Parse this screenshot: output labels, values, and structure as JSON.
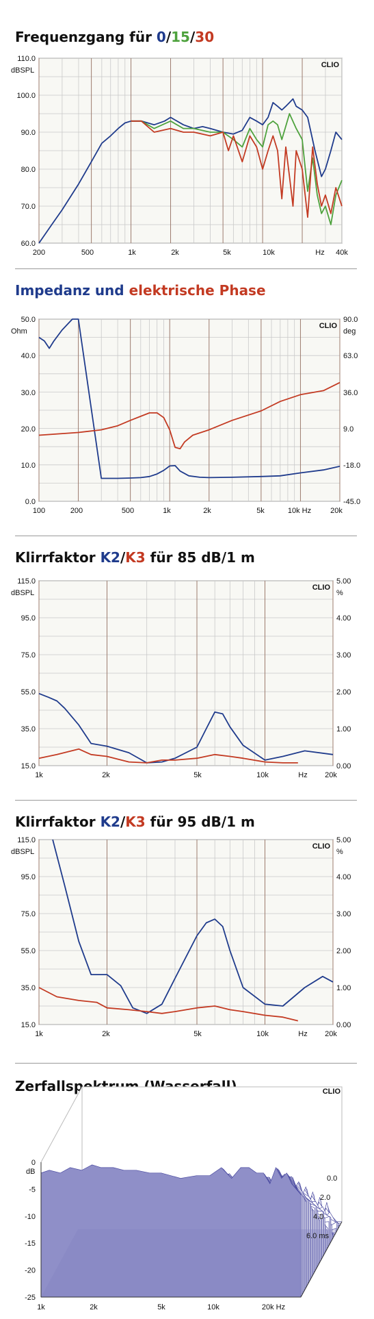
{
  "colors": {
    "blue": "#1f3b8c",
    "green": "#4ea23d",
    "red": "#c33a22",
    "grid": "#c9c9c9",
    "major": "#9c7b6e",
    "plotbg": "#f8f8f4",
    "waterfall": "#4a4aa0"
  },
  "charts": [
    {
      "title_parts": [
        {
          "text": "Frequenzgang für ",
          "color": "default"
        },
        {
          "text": "0",
          "color": "blue"
        },
        {
          "text": "/",
          "color": "default"
        },
        {
          "text": "15",
          "color": "green"
        },
        {
          "text": "/",
          "color": "default"
        },
        {
          "text": "30",
          "color": "red"
        }
      ],
      "brand": "CLIO",
      "left_unit": "dBSPL",
      "y_ticks": [
        "110.0",
        "100.0",
        "90.0",
        "80.0",
        "70.0",
        "60.0"
      ],
      "x_ticks": [
        "200",
        "500",
        "1k",
        "2k",
        "5k",
        "10k",
        "Hz",
        "40k"
      ]
    },
    {
      "title_parts": [
        {
          "text": "Impedanz und ",
          "color": "blue"
        },
        {
          "text": "elektrische Phase",
          "color": "red"
        }
      ],
      "brand": "CLIO",
      "left_unit": "Ohm",
      "right_unit": "deg",
      "y_ticks": [
        "50.0",
        "40.0",
        "30.0",
        "20.0",
        "10.0",
        "0.0"
      ],
      "y2_ticks": [
        "90.0",
        "63.0",
        "36.0",
        "9.0",
        "-18.0",
        "-45.0"
      ],
      "x_ticks": [
        "100",
        "200",
        "500",
        "1k",
        "2k",
        "5k",
        "10k Hz",
        "20k"
      ]
    },
    {
      "title_parts": [
        {
          "text": "Klirrfaktor ",
          "color": "default"
        },
        {
          "text": "K2",
          "color": "blue"
        },
        {
          "text": "/",
          "color": "default"
        },
        {
          "text": "K3",
          "color": "red"
        },
        {
          "text": " für 85 dB/1 m",
          "color": "default"
        }
      ],
      "brand": "CLIO",
      "left_unit": "dBSPL",
      "right_unit": "%",
      "y_ticks": [
        "115.0",
        "95.0",
        "75.0",
        "55.0",
        "35.0",
        "15.0"
      ],
      "y2_ticks": [
        "5.00",
        "4.00",
        "3.00",
        "2.00",
        "1.00",
        "0.00"
      ],
      "x_ticks": [
        "1k",
        "2k",
        "5k",
        "10k",
        "Hz",
        "20k"
      ]
    },
    {
      "title_parts": [
        {
          "text": "Klirrfaktor ",
          "color": "default"
        },
        {
          "text": "K2",
          "color": "blue"
        },
        {
          "text": "/",
          "color": "default"
        },
        {
          "text": "K3",
          "color": "red"
        },
        {
          "text": " für 95 dB/1 m",
          "color": "default"
        }
      ],
      "brand": "CLIO",
      "left_unit": "dBSPL",
      "right_unit": "%",
      "y_ticks": [
        "115.0",
        "95.0",
        "75.0",
        "55.0",
        "35.0",
        "15.0"
      ],
      "y2_ticks": [
        "5.00",
        "4.00",
        "3.00",
        "2.00",
        "1.00",
        "0.00"
      ],
      "x_ticks": [
        "1k",
        "2k",
        "5k",
        "10k",
        "Hz",
        "20k"
      ]
    },
    {
      "title_parts": [
        {
          "text": "Zerfallspektrum (Wasserfall)",
          "color": "default"
        }
      ],
      "brand": "CLIO",
      "left_unit": "dB",
      "y_ticks": [
        "0",
        "-5",
        "-10",
        "-15",
        "-20",
        "-25"
      ],
      "time_ticks": [
        "0.0",
        "2.0",
        "4.0",
        "6.0  ms"
      ],
      "x_ticks": [
        "1k",
        "2k",
        "5k",
        "10k",
        "20k Hz"
      ]
    }
  ],
  "chart_data": [
    {
      "type": "line",
      "title": "Frequenzgang für 0/15/30",
      "ylabel": "dBSPL",
      "xlabel": "Hz",
      "xscale": "log",
      "xlim": [
        200,
        40000
      ],
      "ylim": [
        60,
        110
      ],
      "series": [
        {
          "name": "0",
          "color": "blue",
          "x": [
            200,
            250,
            300,
            400,
            500,
            600,
            700,
            800,
            900,
            1000,
            1200,
            1500,
            1800,
            2000,
            2500,
            3000,
            3500,
            4000,
            5000,
            6000,
            7000,
            8000,
            9000,
            10000,
            11000,
            12000,
            13000,
            14000,
            15000,
            16000,
            17000,
            18000,
            20000,
            22000,
            25000,
            28000,
            30000,
            33000,
            36000,
            40000
          ],
          "y": [
            60,
            65,
            69,
            76,
            82,
            87,
            89,
            91,
            92.5,
            93,
            93,
            92,
            93,
            94,
            92,
            91,
            91.5,
            91,
            90,
            89.5,
            90.5,
            94,
            93,
            92,
            94,
            98,
            97,
            96,
            97,
            98,
            99,
            97,
            96,
            94,
            85,
            78,
            80,
            85,
            90,
            88
          ]
        },
        {
          "name": "15",
          "color": "green",
          "x": [
            1000,
            1200,
            1500,
            2000,
            2500,
            3000,
            4000,
            5000,
            6000,
            7000,
            8000,
            9000,
            10000,
            11000,
            12000,
            13000,
            14000,
            16000,
            18000,
            20000,
            22000,
            24000,
            26000,
            28000,
            30000,
            33000,
            36000,
            40000
          ],
          "y": [
            93,
            93,
            91,
            93,
            91,
            91,
            90,
            90,
            88,
            86,
            91,
            88,
            86,
            92,
            93,
            92,
            88,
            95,
            91,
            88,
            74,
            83,
            73,
            68,
            70,
            65,
            73,
            77
          ]
        },
        {
          "name": "30",
          "color": "red",
          "x": [
            1000,
            1200,
            1500,
            2000,
            2500,
            3000,
            4000,
            5000,
            5500,
            6000,
            7000,
            8000,
            9000,
            10000,
            11000,
            12000,
            13000,
            14000,
            15000,
            16000,
            17000,
            18000,
            20000,
            22000,
            24000,
            26000,
            28000,
            30000,
            33000,
            36000,
            40000
          ],
          "y": [
            93,
            93,
            90,
            91,
            90,
            90,
            89,
            90,
            85,
            89,
            82,
            89,
            86,
            80,
            85,
            89,
            85,
            72,
            86,
            78,
            70,
            85,
            80,
            67,
            86,
            76,
            70,
            73,
            68,
            75,
            70
          ]
        }
      ]
    },
    {
      "type": "line",
      "title": "Impedanz und elektrische Phase",
      "ylabel": "Ohm",
      "y2label": "deg",
      "xlabel": "Hz",
      "xscale": "log",
      "xlim": [
        100,
        20000
      ],
      "ylim": [
        0,
        50
      ],
      "y2lim": [
        -45,
        90
      ],
      "series": [
        {
          "name": "Impedanz",
          "color": "blue",
          "axis": "left",
          "x": [
            100,
            110,
            120,
            130,
            150,
            180,
            200,
            300,
            400,
            500,
            600,
            700,
            800,
            900,
            1000,
            1100,
            1200,
            1400,
            1700,
            2000,
            3000,
            5000,
            7000,
            10000,
            15000,
            20000
          ],
          "y": [
            45,
            44,
            42,
            44,
            47,
            50,
            51,
            6.3,
            6.3,
            6.4,
            6.5,
            6.8,
            7.5,
            8.5,
            9.7,
            9.8,
            8.3,
            7,
            6.6,
            6.5,
            6.6,
            6.8,
            7,
            7.8,
            8.6,
            9.6
          ]
        },
        {
          "name": "Phase",
          "color": "red",
          "axis": "right",
          "x": [
            100,
            200,
            300,
            400,
            500,
            600,
            700,
            800,
            900,
            1000,
            1100,
            1200,
            1300,
            1500,
            2000,
            3000,
            5000,
            7000,
            10000,
            15000,
            20000
          ],
          "y": [
            4,
            6,
            8,
            11,
            15,
            18,
            20.5,
            20.5,
            17,
            8,
            -5,
            -6,
            -1,
            4,
            8,
            15,
            22,
            29,
            34,
            37,
            43
          ]
        }
      ]
    },
    {
      "type": "line",
      "title": "Klirrfaktor K2/K3 für 85 dB/1 m",
      "ylabel": "dBSPL",
      "y2label": "%",
      "xlabel": "Hz",
      "xscale": "log",
      "xlim": [
        1000,
        20000
      ],
      "ylim": [
        15,
        115
      ],
      "y2lim": [
        0,
        5
      ],
      "series": [
        {
          "name": "K2",
          "color": "blue",
          "x": [
            1000,
            1100,
            1200,
            1300,
            1500,
            1700,
            2000,
            2500,
            3000,
            3500,
            4000,
            5000,
            5500,
            6000,
            6500,
            7000,
            8000,
            10000,
            12000,
            15000,
            20000
          ],
          "y": [
            54,
            52,
            50,
            46,
            37,
            27,
            25.5,
            22,
            16.5,
            17,
            19,
            25,
            35,
            44,
            43,
            36,
            26,
            18,
            20,
            23,
            21
          ]
        },
        {
          "name": "K3",
          "color": "red",
          "x": [
            1000,
            1200,
            1500,
            1700,
            2000,
            2500,
            3000,
            3500,
            4000,
            5000,
            6000,
            7000,
            8000,
            10000,
            12000,
            14000
          ],
          "y": [
            19,
            21,
            24,
            21,
            20,
            17,
            16.5,
            18,
            18,
            19,
            21,
            20,
            19,
            17,
            16.5,
            16.5
          ]
        }
      ]
    },
    {
      "type": "line",
      "title": "Klirrfaktor K2/K3 für 95 dB/1 m",
      "ylabel": "dBSPL",
      "y2label": "%",
      "xlabel": "Hz",
      "xscale": "log",
      "xlim": [
        1000,
        20000
      ],
      "ylim": [
        15,
        115
      ],
      "y2lim": [
        0,
        5
      ],
      "series": [
        {
          "name": "K2",
          "color": "blue",
          "x": [
            1150,
            1300,
            1500,
            1700,
            2000,
            2300,
            2600,
            3000,
            3500,
            4000,
            5000,
            5500,
            6000,
            6500,
            7000,
            8000,
            10000,
            12000,
            15000,
            18000,
            20000
          ],
          "y": [
            115,
            90,
            60,
            42,
            42,
            36,
            24,
            21,
            26,
            40,
            63,
            70,
            72,
            68,
            55,
            35,
            26,
            25,
            35,
            41,
            38
          ]
        },
        {
          "name": "K3",
          "color": "red",
          "x": [
            1000,
            1200,
            1500,
            1800,
            2000,
            2500,
            3000,
            3500,
            4000,
            5000,
            6000,
            7000,
            8000,
            10000,
            12000,
            14000
          ],
          "y": [
            35,
            30,
            28,
            27,
            24,
            23,
            22,
            21,
            22,
            24,
            25,
            23,
            22,
            20,
            19,
            17
          ]
        }
      ]
    },
    {
      "type": "area",
      "title": "Zerfallspektrum (Wasserfall)",
      "ylabel": "dB",
      "xlabel": "Hz",
      "zlabel": "ms",
      "xscale": "log",
      "xlim": [
        1000,
        20000
      ],
      "ylim": [
        -25,
        0
      ],
      "zlim": [
        0,
        6
      ],
      "slices": 42,
      "front_profile": {
        "x": [
          1000,
          1100,
          1250,
          1400,
          1600,
          1800,
          2000,
          2300,
          2600,
          3000,
          3500,
          4000,
          5000,
          6000,
          7000,
          8000,
          9000,
          10000,
          11000,
          12000,
          13000,
          14000,
          15000,
          16000,
          17000,
          18000,
          20000
        ],
        "y": [
          -2,
          -1.5,
          -2,
          -1,
          -1.5,
          -0.5,
          -1,
          -1,
          -1.5,
          -1.5,
          -2,
          -2,
          -3,
          -2.5,
          -2.5,
          -1,
          -3,
          -1,
          -1,
          -2,
          -2,
          -4,
          -1,
          -3,
          -2,
          -4,
          -6
        ]
      }
    }
  ]
}
